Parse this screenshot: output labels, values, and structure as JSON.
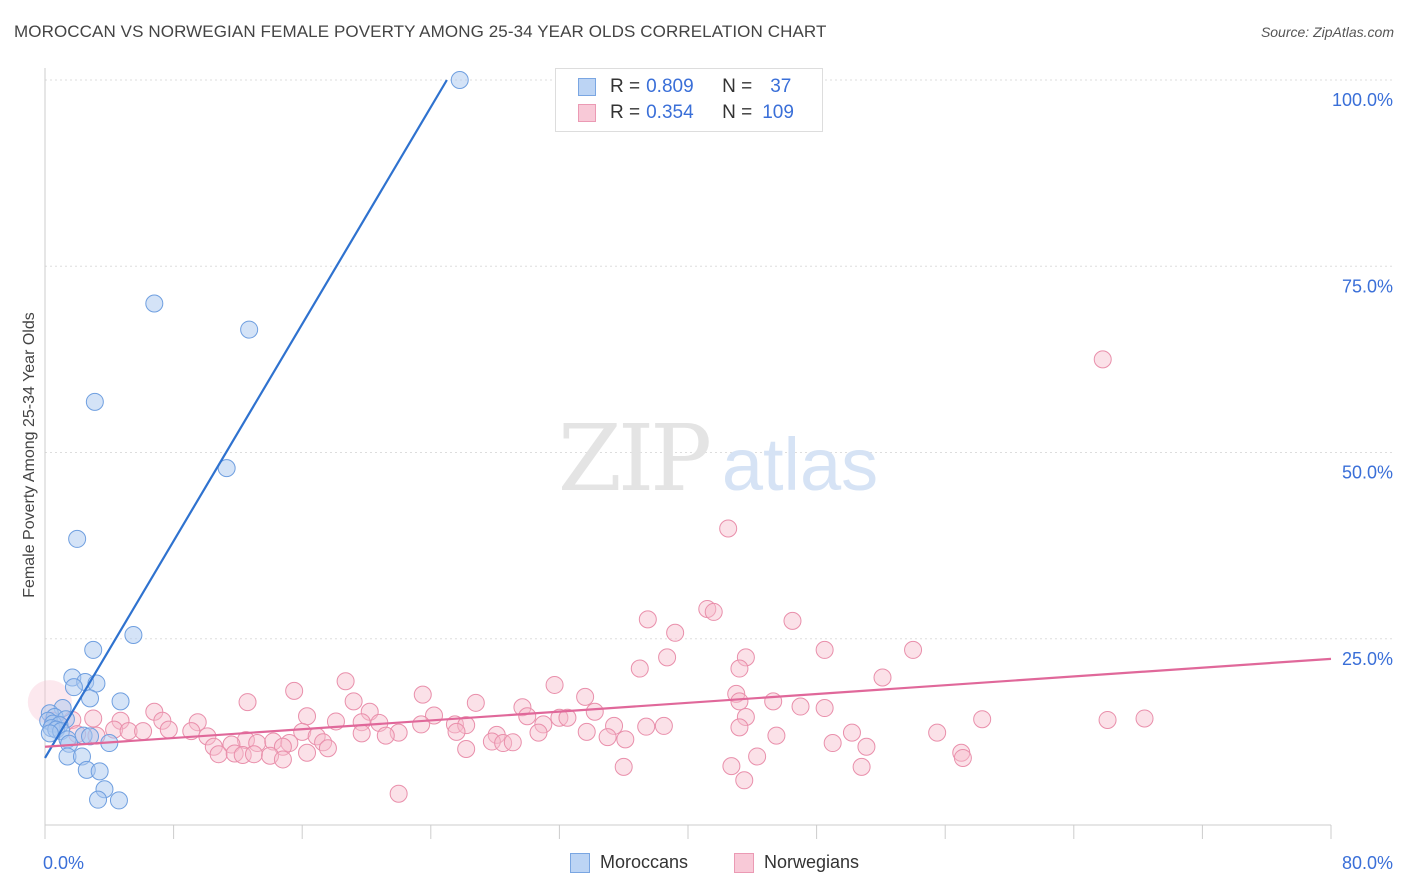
{
  "title": "MOROCCAN VS NORWEGIAN FEMALE POVERTY AMONG 25-34 YEAR OLDS CORRELATION CHART",
  "source": "Source: ZipAtlas.com",
  "watermark": {
    "zip": "ZIP",
    "atlas": "atlas"
  },
  "legend": {
    "r_label": "R =",
    "n_label": "N =",
    "rows": [
      {
        "r": "0.809",
        "n": "37"
      },
      {
        "r": "0.354",
        "n": "109"
      }
    ]
  },
  "colors": {
    "blue_fill": "#aac8f0",
    "blue_stroke": "#6f9fe0",
    "blue_line": "#2f72cf",
    "pink_fill": "#f6bccd",
    "pink_stroke": "#e98fab",
    "pink_line": "#e0689a",
    "tick_label": "#3a6fd8",
    "grid": "#dddddd"
  },
  "chart_data": {
    "type": "scatter",
    "title": "MOROCCAN VS NORWEGIAN FEMALE POVERTY AMONG 25-34 YEAR OLDS CORRELATION CHART",
    "xlabel": "",
    "ylabel": "Female Poverty Among 25-34 Year Olds",
    "xlim": [
      0,
      80
    ],
    "ylim": [
      0,
      100
    ],
    "x_tick_labels": {
      "min": "0.0%",
      "max": "80.0%"
    },
    "y_ticks": [
      {
        "value": 25,
        "label": "25.0%"
      },
      {
        "value": 50,
        "label": "50.0%"
      },
      {
        "value": 75,
        "label": "75.0%"
      },
      {
        "value": 100,
        "label": "100.0%"
      }
    ],
    "series": [
      {
        "name": "Moroccans",
        "r": 0.809,
        "n": 37,
        "trend": {
          "x0": 0.0,
          "y0": 9.0,
          "x1": 25.0,
          "y1": 100.0
        },
        "points": [
          [
            25.8,
            100.0
          ],
          [
            6.8,
            70.0
          ],
          [
            12.7,
            66.5
          ],
          [
            3.1,
            56.8
          ],
          [
            11.3,
            47.9
          ],
          [
            2.0,
            38.4
          ],
          [
            5.5,
            25.5
          ],
          [
            3.0,
            23.5
          ],
          [
            1.7,
            19.8
          ],
          [
            2.5,
            19.2
          ],
          [
            3.2,
            19.0
          ],
          [
            1.8,
            18.5
          ],
          [
            2.8,
            17.0
          ],
          [
            4.7,
            16.6
          ],
          [
            1.1,
            15.7
          ],
          [
            0.3,
            15.0
          ],
          [
            0.6,
            14.5
          ],
          [
            1.3,
            14.2
          ],
          [
            0.2,
            14.0
          ],
          [
            0.5,
            13.6
          ],
          [
            0.9,
            13.4
          ],
          [
            0.4,
            13.0
          ],
          [
            0.7,
            12.8
          ],
          [
            1.0,
            12.6
          ],
          [
            0.3,
            12.3
          ],
          [
            2.4,
            12.0
          ],
          [
            2.8,
            11.9
          ],
          [
            1.4,
            11.5
          ],
          [
            4.0,
            11.0
          ],
          [
            1.5,
            10.9
          ],
          [
            1.4,
            9.2
          ],
          [
            2.3,
            9.2
          ],
          [
            2.6,
            7.4
          ],
          [
            3.4,
            7.2
          ],
          [
            3.7,
            4.8
          ],
          [
            3.3,
            3.4
          ],
          [
            4.6,
            3.3
          ]
        ]
      },
      {
        "name": "Norwegians",
        "r": 0.354,
        "n": 109,
        "trend": {
          "x0": 0.0,
          "y0": 10.5,
          "x1": 80.0,
          "y1": 22.3
        },
        "points": [
          [
            65.8,
            62.5
          ],
          [
            42.5,
            39.8
          ],
          [
            41.2,
            29.0
          ],
          [
            41.6,
            28.6
          ],
          [
            37.5,
            27.6
          ],
          [
            46.5,
            27.4
          ],
          [
            39.2,
            25.8
          ],
          [
            48.5,
            23.5
          ],
          [
            54.0,
            23.5
          ],
          [
            38.7,
            22.5
          ],
          [
            43.6,
            22.5
          ],
          [
            37.0,
            21.0
          ],
          [
            43.2,
            21.0
          ],
          [
            52.1,
            19.8
          ],
          [
            18.7,
            19.3
          ],
          [
            31.7,
            18.8
          ],
          [
            15.5,
            18.0
          ],
          [
            23.5,
            17.5
          ],
          [
            43.0,
            17.6
          ],
          [
            33.6,
            17.2
          ],
          [
            19.2,
            16.6
          ],
          [
            12.6,
            16.5
          ],
          [
            26.8,
            16.4
          ],
          [
            43.2,
            16.6
          ],
          [
            45.3,
            16.6
          ],
          [
            29.7,
            15.8
          ],
          [
            47.0,
            15.9
          ],
          [
            48.5,
            15.7
          ],
          [
            6.8,
            15.2
          ],
          [
            20.2,
            15.2
          ],
          [
            34.2,
            15.2
          ],
          [
            24.2,
            14.7
          ],
          [
            16.3,
            14.6
          ],
          [
            43.6,
            14.5
          ],
          [
            3.0,
            14.3
          ],
          [
            30.0,
            14.6
          ],
          [
            32.0,
            14.4
          ],
          [
            32.5,
            14.4
          ],
          [
            58.3,
            14.2
          ],
          [
            66.1,
            14.1
          ],
          [
            68.4,
            14.3
          ],
          [
            0.5,
            14.0
          ],
          [
            1.7,
            14.1
          ],
          [
            4.7,
            14.0
          ],
          [
            7.3,
            14.0
          ],
          [
            9.5,
            13.8
          ],
          [
            18.1,
            13.9
          ],
          [
            19.7,
            13.8
          ],
          [
            20.8,
            13.7
          ],
          [
            23.4,
            13.5
          ],
          [
            25.5,
            13.5
          ],
          [
            26.2,
            13.4
          ],
          [
            31.0,
            13.5
          ],
          [
            35.4,
            13.3
          ],
          [
            37.4,
            13.2
          ],
          [
            38.5,
            13.3
          ],
          [
            43.2,
            13.1
          ],
          [
            50.2,
            12.4
          ],
          [
            55.5,
            12.4
          ],
          [
            4.3,
            12.8
          ],
          [
            5.2,
            12.6
          ],
          [
            6.1,
            12.6
          ],
          [
            7.7,
            12.8
          ],
          [
            9.1,
            12.6
          ],
          [
            16.0,
            12.5
          ],
          [
            19.7,
            12.3
          ],
          [
            22.0,
            12.4
          ],
          [
            25.6,
            12.5
          ],
          [
            30.7,
            12.4
          ],
          [
            33.7,
            12.5
          ],
          [
            2.0,
            12.2
          ],
          [
            3.2,
            12.0
          ],
          [
            10.1,
            11.9
          ],
          [
            16.9,
            11.9
          ],
          [
            21.2,
            12.0
          ],
          [
            28.1,
            12.1
          ],
          [
            35.0,
            11.8
          ],
          [
            45.5,
            12.0
          ],
          [
            12.5,
            11.4
          ],
          [
            13.2,
            11.0
          ],
          [
            14.2,
            11.2
          ],
          [
            15.2,
            11.0
          ],
          [
            17.3,
            11.1
          ],
          [
            27.8,
            11.2
          ],
          [
            28.5,
            11.0
          ],
          [
            29.1,
            11.1
          ],
          [
            36.1,
            11.5
          ],
          [
            49.0,
            11.0
          ],
          [
            10.5,
            10.5
          ],
          [
            11.6,
            10.8
          ],
          [
            14.8,
            10.5
          ],
          [
            17.6,
            10.3
          ],
          [
            26.2,
            10.2
          ],
          [
            51.1,
            10.5
          ],
          [
            57.0,
            9.7
          ],
          [
            10.8,
            9.5
          ],
          [
            11.8,
            9.6
          ],
          [
            12.3,
            9.4
          ],
          [
            13.0,
            9.5
          ],
          [
            14.0,
            9.3
          ],
          [
            16.3,
            9.7
          ],
          [
            44.3,
            9.2
          ],
          [
            57.1,
            9.0
          ],
          [
            14.8,
            8.8
          ],
          [
            36.0,
            7.8
          ],
          [
            42.7,
            7.9
          ],
          [
            50.8,
            7.8
          ],
          [
            43.5,
            6.0
          ],
          [
            22.0,
            4.2
          ]
        ]
      }
    ]
  }
}
